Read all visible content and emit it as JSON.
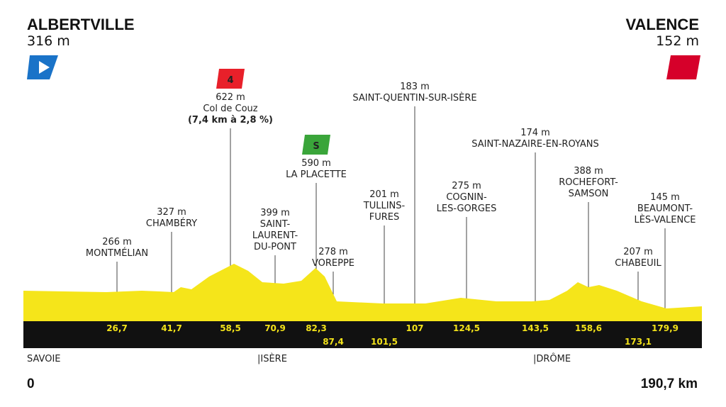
{
  "start": {
    "name": "ALBERTVILLE",
    "altitude": "316 m"
  },
  "finish": {
    "name": "VALENCE",
    "altitude": "152 m"
  },
  "points": [
    {
      "altitude": "266 m",
      "name": [
        "MONTMÉLIAN"
      ],
      "km": "26,7"
    },
    {
      "altitude": "327 m",
      "name": [
        "CHAMBÉRY"
      ],
      "km": "41,7"
    },
    {
      "altitude": "622 m",
      "name": [
        "Col de Couz"
      ],
      "detail": "(7,4 km à 2,8 %)",
      "km": "58,5",
      "badge": "4"
    },
    {
      "altitude": "399 m",
      "name": [
        "SAINT-",
        "LAURENT-",
        "DU-PONT"
      ],
      "km": "70,9"
    },
    {
      "altitude": "590 m",
      "name": [
        "LA PLACETTE"
      ],
      "km": "82,3",
      "badge": "S"
    },
    {
      "altitude": "278 m",
      "name": [
        "VOREPPE"
      ],
      "km": "87,4"
    },
    {
      "altitude": "201 m",
      "name": [
        "TULLINS-",
        "FURES"
      ],
      "km": "101,5"
    },
    {
      "altitude": "183 m",
      "name": [
        "SAINT-QUENTIN-SUR-ISÈRE"
      ],
      "km": "107"
    },
    {
      "altitude": "275 m",
      "name": [
        "COGNIN-",
        "LES-GORGES"
      ],
      "km": "124,5"
    },
    {
      "altitude": "174 m",
      "name": [
        "SAINT-NAZAIRE-EN-ROYANS"
      ],
      "km": "143,5"
    },
    {
      "altitude": "388 m",
      "name": [
        "ROCHEFORT-",
        "SAMSON"
      ],
      "km": "158,6"
    },
    {
      "altitude": "207 m",
      "name": [
        "CHABEUIL"
      ],
      "km": "173,1"
    },
    {
      "altitude": "145 m",
      "name": [
        "BEAUMONT-",
        "LÈS-VALENCE"
      ],
      "km": "179,9"
    }
  ],
  "regions": [
    "SAVOIE",
    "|ISÈRE",
    "|DRÔME"
  ],
  "distance_start": "0",
  "distance_end": "190,7 km"
}
